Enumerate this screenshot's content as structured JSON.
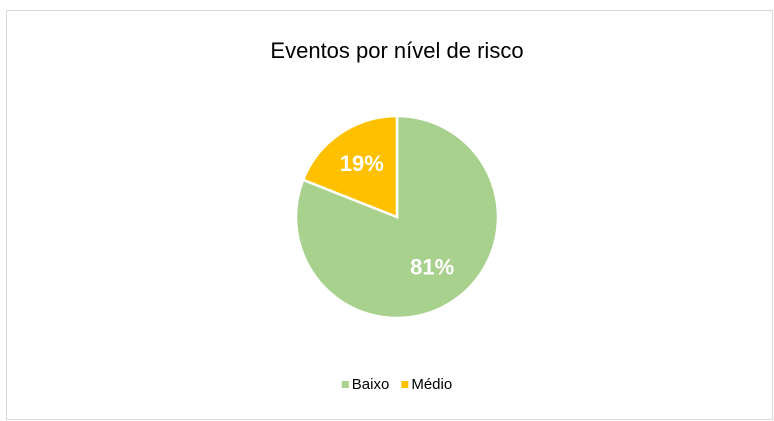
{
  "chart_data": {
    "type": "pie",
    "title": "Eventos por nível de risco",
    "categories": [
      "Baixo",
      "Médio"
    ],
    "values": [
      81,
      19
    ],
    "value_labels": [
      "81%",
      "19%"
    ],
    "colors": [
      "#a9d18e",
      "#ffc000"
    ],
    "legend": "bottom"
  }
}
